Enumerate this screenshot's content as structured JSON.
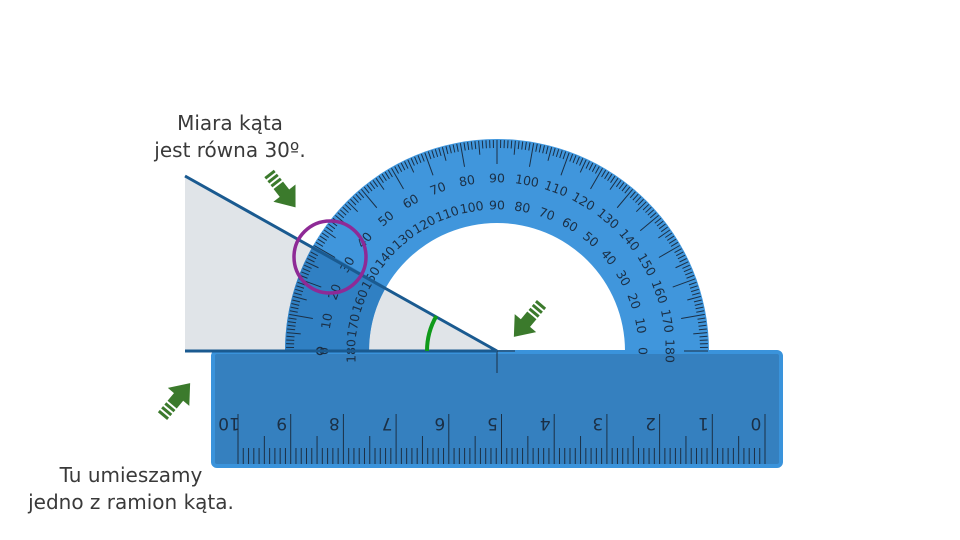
{
  "captions": {
    "measure_line1": "Miara kąta",
    "measure_line2": "jest równa 30º.",
    "place_line1": "Tu umieszamy",
    "place_line2": "jedno z ramion kąta."
  },
  "angle": {
    "value_degrees": 30
  },
  "protractor": {
    "outer_scale": [
      "0",
      "10",
      "20",
      "30",
      "40",
      "50",
      "60",
      "70",
      "80",
      "90",
      "100",
      "110",
      "120",
      "130",
      "140",
      "150",
      "160",
      "170",
      "180"
    ],
    "inner_scale": [
      "180",
      "170",
      "160",
      "150",
      "140",
      "130",
      "120",
      "110",
      "100",
      "90",
      "80",
      "70",
      "60",
      "50",
      "40",
      "30",
      "20",
      "10",
      "0"
    ]
  },
  "ruler": {
    "numbers": [
      "0",
      "1",
      "2",
      "3",
      "4",
      "5",
      "6",
      "7",
      "8",
      "9",
      "10"
    ]
  },
  "colors": {
    "protractor": "#3a93db",
    "protractor_dark": "#2f7dc0",
    "ruler": "#3580bf",
    "ruler_border": "#3a93db",
    "angle_line": "#1a5a90",
    "angle_fill": "#e0e4e8",
    "angle_arc": "#0f9a1a",
    "highlight_circle": "#8e2a96",
    "arrow": "#3b7a2c",
    "text": "#3a3a3a"
  }
}
